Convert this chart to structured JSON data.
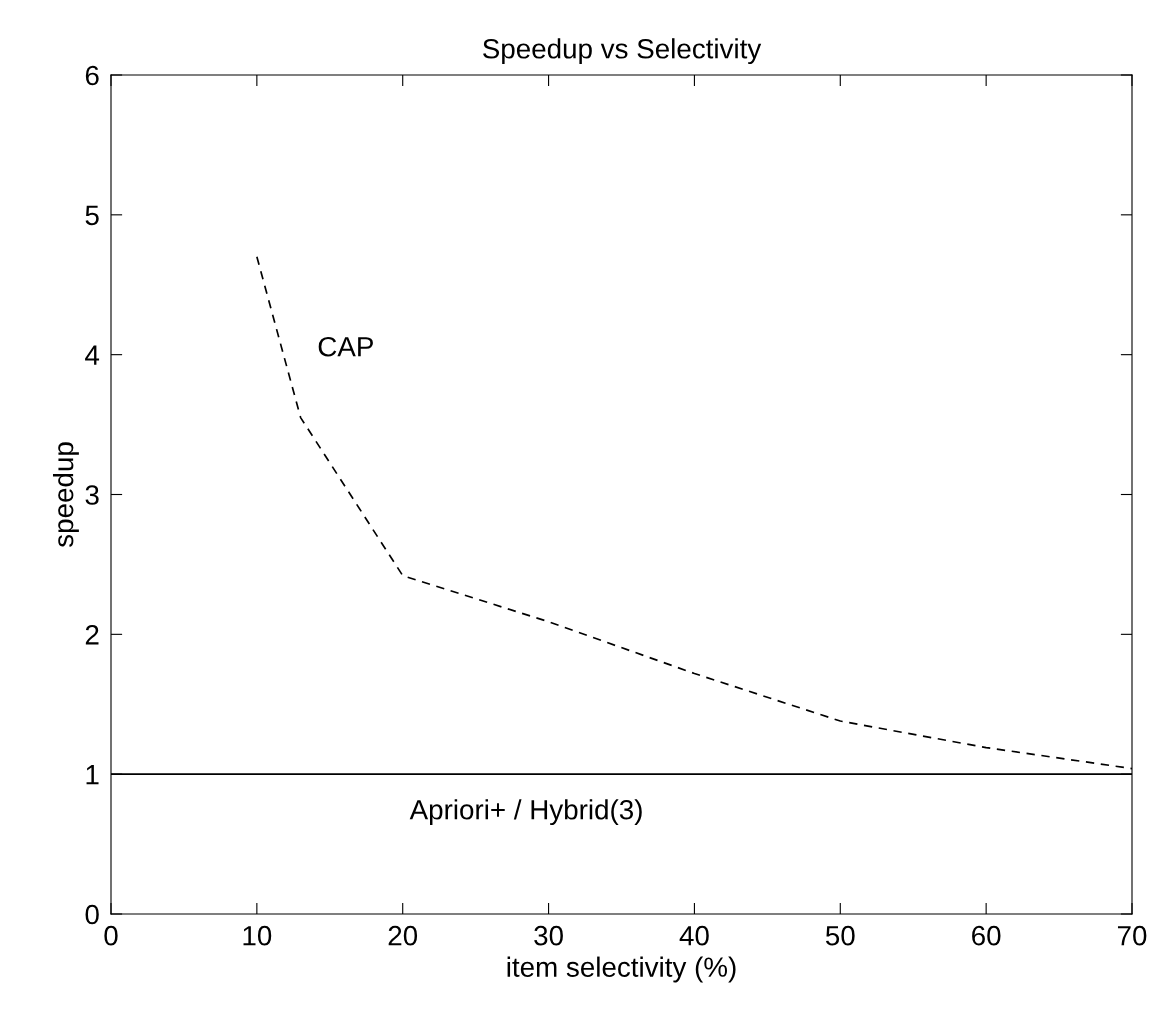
{
  "chart_data": {
    "type": "line",
    "title": "Speedup vs Selectivity",
    "xlabel": "item selectivity (%)",
    "ylabel": "speedup",
    "xlim": [
      0,
      70
    ],
    "xticks": [
      0,
      10,
      20,
      30,
      40,
      50,
      60,
      70
    ],
    "ylim": [
      0,
      6
    ],
    "yticks": [
      0,
      1,
      2,
      3,
      4,
      5,
      6
    ],
    "grid": false,
    "legend": false,
    "marker": "none",
    "series": [
      {
        "name": "CAP",
        "color": "#000000",
        "line_style": "dashed",
        "x": [
          10,
          13,
          20,
          30,
          40,
          50,
          60,
          70
        ],
        "values": [
          4.7,
          3.55,
          2.42,
          2.09,
          1.72,
          1.38,
          1.19,
          1.04
        ]
      },
      {
        "name": "Apriori+ / Hybrid(3)",
        "color": "#000000",
        "line_style": "solid",
        "x": [
          0,
          70
        ],
        "values": [
          1,
          1
        ]
      }
    ]
  }
}
